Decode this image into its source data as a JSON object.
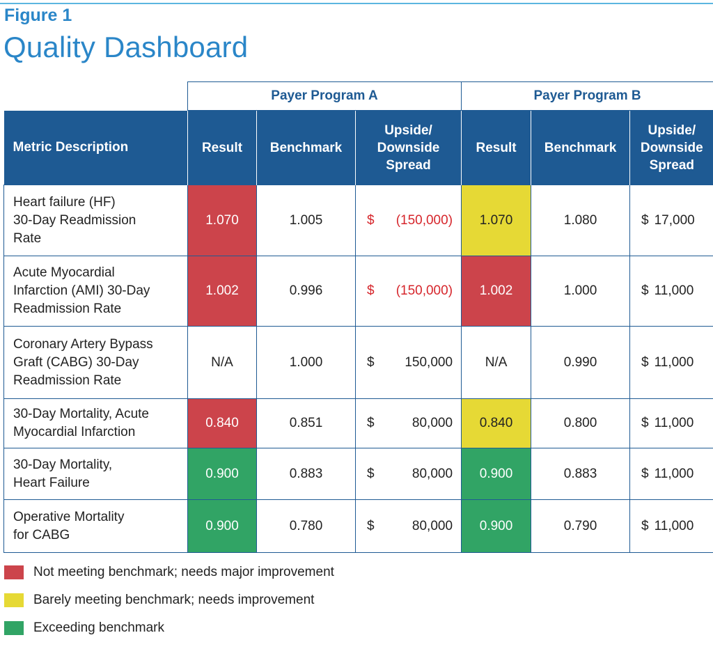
{
  "figure": {
    "label": "Figure 1",
    "title": "Quality Dashboard"
  },
  "table": {
    "programs": [
      "Payer Program A",
      "Payer Program B"
    ],
    "headers": {
      "metric": "Metric Description",
      "result": "Result",
      "benchmark": "Benchmark",
      "spread_l1": "Upside/",
      "spread_l2": "Downside",
      "spread_l3": "Spread"
    },
    "rows": [
      {
        "desc": [
          "Heart failure (HF)",
          "30-Day Readmission",
          "Rate"
        ],
        "a": {
          "result": "1.070",
          "status": "red",
          "benchmark": "1.005",
          "spread_sign": "$",
          "spread": "(150,000)",
          "negative": true
        },
        "b": {
          "result": "1.070",
          "status": "yellow",
          "benchmark": "1.080",
          "spread_sign": "$",
          "spread": "17,000"
        }
      },
      {
        "desc": [
          "Acute Myocardial",
          "Infarction (AMI) 30-Day",
          "Readmission Rate"
        ],
        "a": {
          "result": "1.002",
          "status": "red",
          "benchmark": "0.996",
          "spread_sign": "$",
          "spread": "(150,000)",
          "negative": true
        },
        "b": {
          "result": "1.002",
          "status": "red",
          "benchmark": "1.000",
          "spread_sign": "$",
          "spread": "11,000"
        }
      },
      {
        "desc": [
          "Coronary Artery Bypass",
          "Graft (CABG) 30-Day",
          "Readmission Rate"
        ],
        "a": {
          "result": "N/A",
          "status": "none",
          "benchmark": "1.000",
          "spread_sign": "$",
          "spread": "150,000"
        },
        "b": {
          "result": "N/A",
          "status": "none",
          "benchmark": "0.990",
          "spread_sign": "$",
          "spread": "11,000"
        }
      },
      {
        "desc": [
          "30-Day Mortality, Acute",
          "Myocardial Infarction"
        ],
        "a": {
          "result": "0.840",
          "status": "red",
          "benchmark": "0.851",
          "spread_sign": "$",
          "spread": "80,000"
        },
        "b": {
          "result": "0.840",
          "status": "yellow",
          "benchmark": "0.800",
          "spread_sign": "$",
          "spread": "11,000"
        }
      },
      {
        "desc": [
          "30-Day Mortality,",
          "Heart Failure"
        ],
        "a": {
          "result": "0.900",
          "status": "green",
          "benchmark": "0.883",
          "spread_sign": "$",
          "spread": "80,000"
        },
        "b": {
          "result": "0.900",
          "status": "green",
          "benchmark": "0.883",
          "spread_sign": "$",
          "spread": "11,000"
        }
      },
      {
        "desc": [
          "Operative Mortality",
          "for CABG"
        ],
        "a": {
          "result": "0.900",
          "status": "green",
          "benchmark": "0.780",
          "spread_sign": "$",
          "spread": "80,000"
        },
        "b": {
          "result": "0.900",
          "status": "green",
          "benchmark": "0.790",
          "spread_sign": "$",
          "spread": "11,000"
        }
      }
    ]
  },
  "legend": [
    {
      "color": "#cc444b",
      "label": "Not meeting benchmark; needs major improvement"
    },
    {
      "color": "#e6d935",
      "label": "Barely meeting benchmark; needs improvement"
    },
    {
      "color": "#31a465",
      "label": "Exceeding benchmark"
    }
  ],
  "colors": {
    "accent": "#2a86c8",
    "header_bg": "#1e5a93",
    "red": "#cc444b",
    "yellow": "#e6d935",
    "green": "#31a465",
    "negative_text": "#d6262c"
  }
}
